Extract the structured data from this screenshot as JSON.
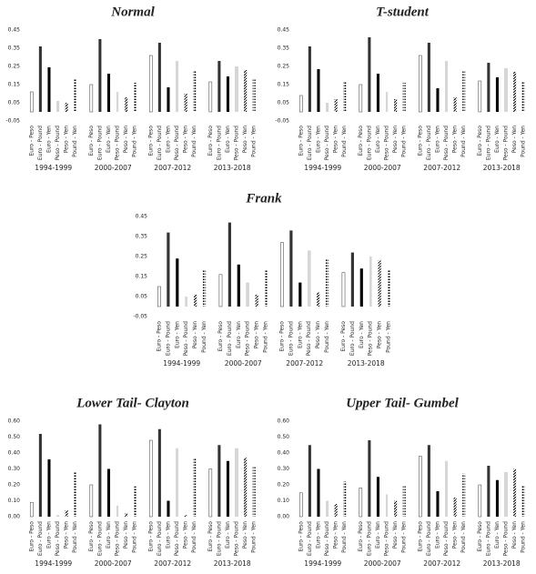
{
  "chart_data": [
    {
      "type": "bar",
      "title": "Normal",
      "categories": [
        "1994-1999",
        "2000-2007",
        "2007-2012",
        "2013-2018"
      ],
      "ylim": [
        -0.05,
        0.45
      ],
      "yticks": [
        -0.05,
        0.05,
        0.15,
        0.25,
        0.35,
        0.45
      ],
      "series": [
        {
          "name": "Euro - Peso",
          "color": "#ffffff",
          "hatch": "outline",
          "values": [
            0.11,
            0.15,
            0.31,
            0.165
          ]
        },
        {
          "name": "Euro - Pound",
          "color": "#333333",
          "hatch": "solid",
          "values": [
            0.36,
            0.4,
            0.38,
            0.28
          ]
        },
        {
          "name": "Euro - Yen",
          "color": "#000000",
          "hatch": "solid",
          "values": [
            0.245,
            0.21,
            0.135,
            0.195
          ]
        },
        {
          "name": "Peso - Pound",
          "color": "#999999",
          "hatch": "lines",
          "values": [
            0.06,
            0.11,
            0.28,
            0.25
          ]
        },
        {
          "name": "Peso - Yen",
          "color": "#000000",
          "hatch": "diagonal",
          "values": [
            0.05,
            0.08,
            0.1,
            0.23
          ]
        },
        {
          "name": "Pound - Yen",
          "color": "#000000",
          "hatch": "dotted",
          "values": [
            0.18,
            0.16,
            0.23,
            0.18
          ]
        }
      ]
    },
    {
      "type": "bar",
      "title": "T-student",
      "categories": [
        "1994-1999",
        "2000-2007",
        "2007-2012",
        "2013-2018"
      ],
      "ylim": [
        -0.05,
        0.45
      ],
      "yticks": [
        -0.05,
        0.05,
        0.15,
        0.25,
        0.35,
        0.45
      ],
      "series": [
        {
          "name": "Euro - Peso",
          "color": "#ffffff",
          "hatch": "outline",
          "values": [
            0.09,
            0.15,
            0.31,
            0.17
          ]
        },
        {
          "name": "Euro - Pound",
          "color": "#333333",
          "hatch": "solid",
          "values": [
            0.36,
            0.41,
            0.38,
            0.27
          ]
        },
        {
          "name": "Euro - Yen",
          "color": "#000000",
          "hatch": "solid",
          "values": [
            0.235,
            0.21,
            0.13,
            0.19
          ]
        },
        {
          "name": "Peso - Pound",
          "color": "#999999",
          "hatch": "lines",
          "values": [
            0.05,
            0.11,
            0.28,
            0.24
          ]
        },
        {
          "name": "Peso - Yen",
          "color": "#000000",
          "hatch": "diagonal",
          "values": [
            0.07,
            0.07,
            0.08,
            0.22
          ]
        },
        {
          "name": "Pound - Yen",
          "color": "#000000",
          "hatch": "dotted",
          "values": [
            0.17,
            0.16,
            0.23,
            0.17
          ]
        }
      ]
    },
    {
      "type": "bar",
      "title": "Frank",
      "categories": [
        "1994-1999",
        "2000-2007",
        "2007-2012",
        "2013-2018"
      ],
      "ylim": [
        -0.05,
        0.45
      ],
      "yticks": [
        -0.05,
        0.05,
        0.15,
        0.25,
        0.35,
        0.45
      ],
      "series": [
        {
          "name": "Euro - Peso",
          "color": "#ffffff",
          "hatch": "outline",
          "values": [
            0.1,
            0.16,
            0.32,
            0.17
          ]
        },
        {
          "name": "Euro - Pound",
          "color": "#333333",
          "hatch": "solid",
          "values": [
            0.37,
            0.42,
            0.38,
            0.27
          ]
        },
        {
          "name": "Euro - Yen",
          "color": "#000000",
          "hatch": "solid",
          "values": [
            0.24,
            0.21,
            0.12,
            0.19
          ]
        },
        {
          "name": "Peso - Pound",
          "color": "#999999",
          "hatch": "lines",
          "values": [
            0.05,
            0.12,
            0.28,
            0.25
          ]
        },
        {
          "name": "Peso - Yen",
          "color": "#000000",
          "hatch": "diagonal",
          "values": [
            0.06,
            0.06,
            0.07,
            0.23
          ]
        },
        {
          "name": "Pound - Yen",
          "color": "#000000",
          "hatch": "dotted",
          "values": [
            0.18,
            0.18,
            0.24,
            0.18
          ]
        }
      ]
    },
    {
      "type": "bar",
      "title": "Lower Tail- Clayton",
      "categories": [
        "1994-1999",
        "2000-2007",
        "2007-2012",
        "2013-2018"
      ],
      "ylim": [
        0,
        0.6
      ],
      "yticks": [
        {
          "value": 0,
          "label": "0.00"
        },
        {
          "value": 0.1,
          "label": "0.10"
        },
        {
          "value": 0.2,
          "label": "0.20"
        },
        {
          "value": 0.3,
          "label": "0.30"
        },
        {
          "value": 0.4,
          "label": "0.40"
        },
        {
          "value": 0.5,
          "label": "0.50"
        },
        {
          "value": 0.6,
          "label": "0.60"
        }
      ],
      "series": [
        {
          "name": "Euro - Peso",
          "color": "#ffffff",
          "hatch": "outline",
          "values": [
            0.09,
            0.2,
            0.48,
            0.3
          ]
        },
        {
          "name": "Euro - Pound",
          "color": "#333333",
          "hatch": "solid",
          "values": [
            0.52,
            0.58,
            0.55,
            0.45
          ]
        },
        {
          "name": "Euro - Yen",
          "color": "#000000",
          "hatch": "solid",
          "values": [
            0.36,
            0.3,
            0.1,
            0.35
          ]
        },
        {
          "name": "Peso - Pound",
          "color": "#999999",
          "hatch": "lines",
          "values": [
            0.01,
            0.07,
            0.43,
            0.43
          ]
        },
        {
          "name": "Peso - Yen",
          "color": "#000000",
          "hatch": "diagonal",
          "values": [
            0.04,
            0.02,
            0.01,
            0.37
          ]
        },
        {
          "name": "Pound - Yen",
          "color": "#000000",
          "hatch": "dotted",
          "values": [
            0.28,
            0.19,
            0.37,
            0.32
          ]
        }
      ]
    },
    {
      "type": "bar",
      "title": "Upper Tail- Gumbel",
      "categories": [
        "1994-1999",
        "2000-2007",
        "2007-2012",
        "2013-2018"
      ],
      "ylim": [
        0,
        0.6
      ],
      "yticks": [
        {
          "value": 0,
          "label": "0.00"
        },
        {
          "value": 0.1,
          "label": "0.10"
        },
        {
          "value": 0.2,
          "label": "0.20"
        },
        {
          "value": 0.3,
          "label": "0.30"
        },
        {
          "value": 0.4,
          "label": "0.40"
        },
        {
          "value": 0.5,
          "label": "0.50"
        },
        {
          "value": 0.6,
          "label": "0.60"
        }
      ],
      "series": [
        {
          "name": "Euro - Peso",
          "color": "#ffffff",
          "hatch": "outline",
          "values": [
            0.15,
            0.18,
            0.38,
            0.2
          ]
        },
        {
          "name": "Euro - Pound",
          "color": "#333333",
          "hatch": "solid",
          "values": [
            0.45,
            0.48,
            0.45,
            0.32
          ]
        },
        {
          "name": "Euro - Yen",
          "color": "#000000",
          "hatch": "solid",
          "values": [
            0.3,
            0.25,
            0.16,
            0.23
          ]
        },
        {
          "name": "Peso - Pound",
          "color": "#999999",
          "hatch": "lines",
          "values": [
            0.1,
            0.14,
            0.35,
            0.28
          ]
        },
        {
          "name": "Peso - Yen",
          "color": "#000000",
          "hatch": "diagonal",
          "values": [
            0.08,
            0.1,
            0.12,
            0.3
          ]
        },
        {
          "name": "Pound - Yen",
          "color": "#000000",
          "hatch": "dotted",
          "values": [
            0.22,
            0.2,
            0.27,
            0.2
          ]
        }
      ]
    }
  ]
}
